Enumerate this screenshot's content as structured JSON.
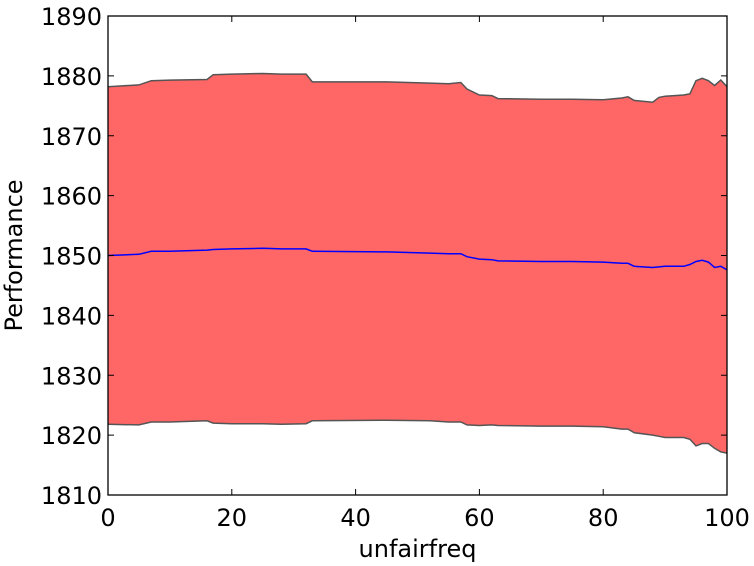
{
  "chart_data": {
    "type": "area",
    "title": "",
    "xlabel": "unfairfreq",
    "ylabel": "Performance",
    "xlim": [
      0,
      100
    ],
    "ylim": [
      1810,
      1890
    ],
    "xticks": [
      0,
      20,
      40,
      60,
      80,
      100
    ],
    "yticks": [
      1810,
      1820,
      1830,
      1840,
      1850,
      1860,
      1870,
      1880,
      1890
    ],
    "grid": false,
    "legend": "none",
    "colors": {
      "band": "#ff6666",
      "band_edge": "#555555",
      "mean_line": "#0000ff",
      "axes": "#000000"
    },
    "x": [
      0,
      5,
      7,
      10,
      16,
      17,
      20,
      25,
      28,
      32,
      33,
      45,
      52,
      55,
      57,
      58,
      60,
      62,
      63,
      70,
      75,
      80,
      83,
      84,
      85,
      88,
      89,
      90,
      93,
      94,
      95,
      96,
      97,
      98,
      99,
      100
    ],
    "mean": [
      1850.0,
      1850.2,
      1850.7,
      1850.7,
      1850.9,
      1851.0,
      1851.1,
      1851.2,
      1851.1,
      1851.1,
      1850.7,
      1850.6,
      1850.4,
      1850.3,
      1850.3,
      1849.8,
      1849.4,
      1849.3,
      1849.1,
      1849.0,
      1849.0,
      1848.9,
      1848.7,
      1848.7,
      1848.2,
      1848.0,
      1848.1,
      1848.2,
      1848.2,
      1848.5,
      1849.0,
      1849.2,
      1848.9,
      1848.0,
      1848.2,
      1847.6
    ],
    "upper": [
      1878.2,
      1878.5,
      1879.2,
      1879.3,
      1879.4,
      1880.2,
      1880.3,
      1880.4,
      1880.3,
      1880.3,
      1879.0,
      1879.0,
      1878.8,
      1878.7,
      1878.9,
      1877.8,
      1876.8,
      1876.7,
      1876.2,
      1876.1,
      1876.1,
      1876.0,
      1876.3,
      1876.5,
      1875.9,
      1875.6,
      1876.4,
      1876.6,
      1876.8,
      1877.0,
      1879.2,
      1879.6,
      1879.2,
      1878.4,
      1879.3,
      1878.2
    ],
    "lower": [
      1821.8,
      1821.7,
      1822.2,
      1822.2,
      1822.4,
      1822.0,
      1821.9,
      1821.9,
      1821.8,
      1821.9,
      1822.4,
      1822.5,
      1822.4,
      1822.2,
      1822.2,
      1821.7,
      1821.6,
      1821.7,
      1821.6,
      1821.5,
      1821.5,
      1821.4,
      1821.0,
      1821.0,
      1820.4,
      1820.0,
      1819.8,
      1819.6,
      1819.6,
      1819.3,
      1818.2,
      1818.6,
      1818.6,
      1817.8,
      1817.2,
      1817.0
    ]
  }
}
